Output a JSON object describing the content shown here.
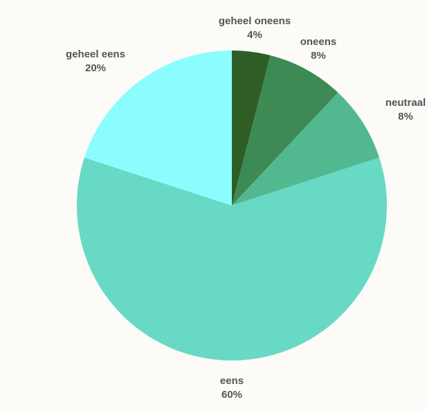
{
  "chart_data": {
    "type": "pie",
    "title": "",
    "slices": [
      {
        "label": "geheel oneens",
        "value": 4,
        "display": "4%",
        "color": "#2f5e25"
      },
      {
        "label": "oneens",
        "value": 8,
        "display": "8%",
        "color": "#3d8a55"
      },
      {
        "label": "neutraal",
        "value": 8,
        "display": "8%",
        "color": "#52b890"
      },
      {
        "label": "eens",
        "value": 60,
        "display": "60%",
        "color": "#68d9c5"
      },
      {
        "label": "geheel eens",
        "value": 20,
        "display": "20%",
        "color": "#8cfdfe"
      }
    ],
    "start_angle": "12 o'clock",
    "direction": "clockwise",
    "legend": "none",
    "label_style": "outside, name above percentage"
  }
}
